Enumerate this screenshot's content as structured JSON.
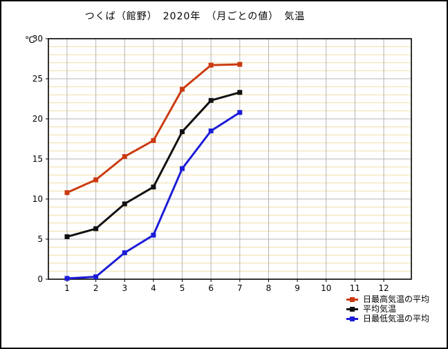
{
  "chart_data": {
    "type": "line",
    "title": "つくば（館野）　2020年　（月ごとの値）　気温",
    "ylabel": "℃",
    "xlim": [
      0,
      13
    ],
    "ylim": [
      0,
      30
    ],
    "x_ticks": [
      1,
      2,
      3,
      4,
      5,
      6,
      7,
      8,
      9,
      10,
      11,
      12
    ],
    "y_ticks": [
      0,
      5,
      10,
      15,
      20,
      25,
      30
    ],
    "grid": {
      "minor_step_c": 1,
      "major_step_c": 5,
      "minor_color": "#eddfa6",
      "major_color": "#b4b4b4",
      "frame_color": "#000000"
    },
    "x": [
      1,
      2,
      3,
      4,
      5,
      6,
      7
    ],
    "series": [
      {
        "key": "daily-max-avg",
        "name": "日最高気温の平均",
        "color": "#cb3a10",
        "values": [
          10.8,
          12.4,
          15.3,
          17.3,
          23.7,
          26.7,
          26.8
        ]
      },
      {
        "key": "mean-temp",
        "name": "平均気温",
        "color": "#111111",
        "values": [
          5.3,
          6.3,
          9.4,
          11.5,
          18.4,
          22.3,
          23.3
        ]
      },
      {
        "key": "daily-min-avg",
        "name": "日最低気温の平均",
        "color": "#1c1cd8",
        "values": [
          0.1,
          0.3,
          3.3,
          5.5,
          13.8,
          18.5,
          20.8
        ]
      }
    ],
    "legend_position": "bottom-right"
  }
}
